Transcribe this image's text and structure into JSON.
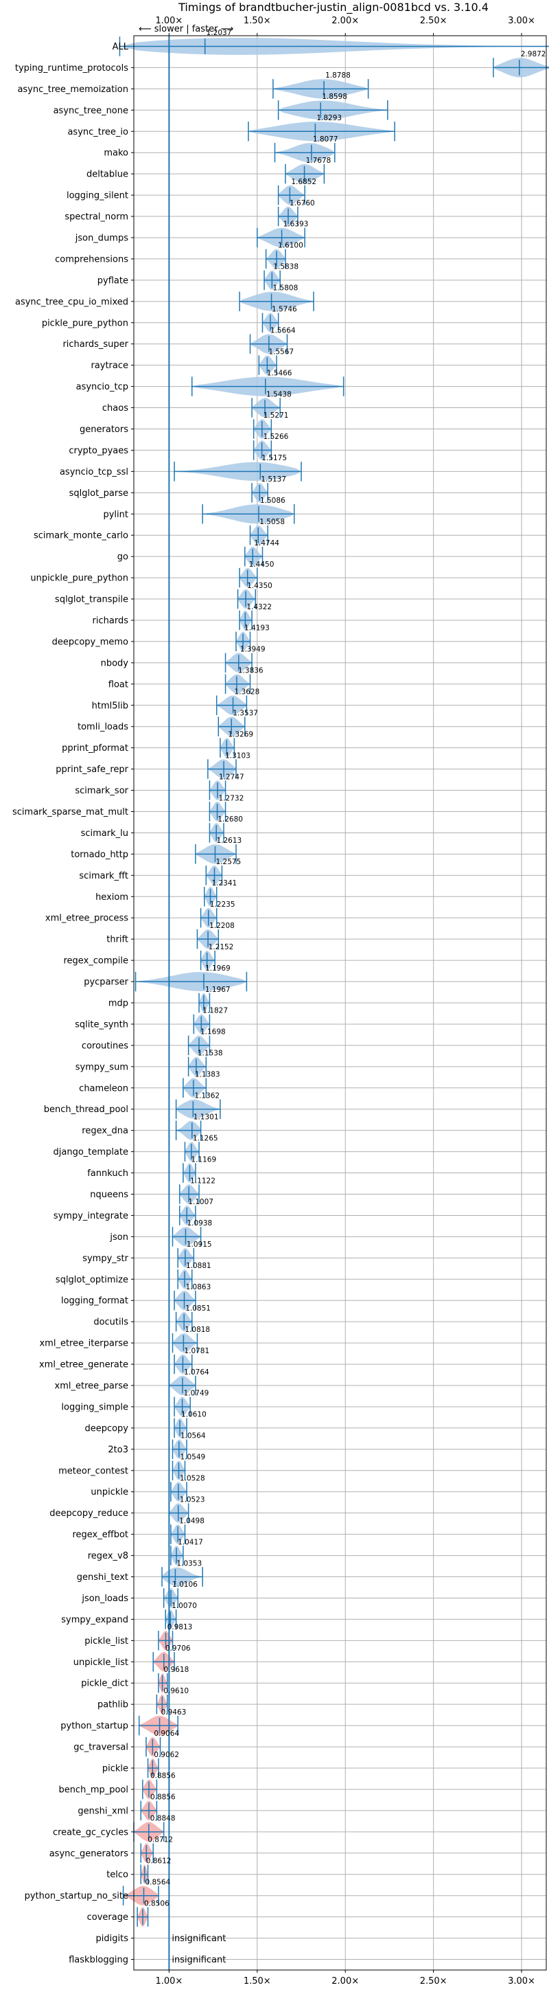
{
  "chart_data": {
    "type": "violin",
    "title": "Timings of brandtbucher-justin_align-0081bcd vs. 3.10.4",
    "direction_label": "⟵ slower | faster ⟶",
    "xlim": [
      0.8,
      3.14
    ],
    "x_ticks": [
      1.0,
      1.5,
      2.0,
      2.5,
      3.0
    ],
    "x_tick_labels": [
      "1.00×",
      "1.50×",
      "2.00×",
      "2.50×",
      "3.00×"
    ],
    "reference_line": 1.0,
    "grid": true,
    "colors": {
      "faster": "#1f77b4",
      "slower": "#d62728",
      "violin_faster": "#a9c9e6",
      "violin_slower": "#f2a9a9",
      "grid": "#b0b0b0"
    },
    "benchmarks": [
      {
        "name": "ALL",
        "value": "1.2037",
        "median": 1.2037,
        "min": 0.72,
        "max": 3.17
      },
      {
        "name": "typing_runtime_protocols",
        "value": "2.9872",
        "median": 2.9872,
        "min": 2.84,
        "max": 3.17
      },
      {
        "name": "async_tree_memoization",
        "value": "1.8788",
        "median": 1.8788,
        "min": 1.59,
        "max": 2.13
      },
      {
        "name": "async_tree_none",
        "value": "1.8598",
        "median": 1.8598,
        "min": 1.62,
        "max": 2.24
      },
      {
        "name": "async_tree_io",
        "value": "1.8293",
        "median": 1.8293,
        "min": 1.45,
        "max": 2.28
      },
      {
        "name": "mako",
        "value": "1.8077",
        "median": 1.8077,
        "min": 1.6,
        "max": 1.94
      },
      {
        "name": "deltablue",
        "value": "1.7678",
        "median": 1.7678,
        "min": 1.66,
        "max": 1.88
      },
      {
        "name": "logging_silent",
        "value": "1.6852",
        "median": 1.6852,
        "min": 1.62,
        "max": 1.77
      },
      {
        "name": "spectral_norm",
        "value": "1.6760",
        "median": 1.676,
        "min": 1.62,
        "max": 1.73
      },
      {
        "name": "json_dumps",
        "value": "1.6393",
        "median": 1.6393,
        "min": 1.5,
        "max": 1.77
      },
      {
        "name": "comprehensions",
        "value": "1.6100",
        "median": 1.61,
        "min": 1.55,
        "max": 1.66
      },
      {
        "name": "pyflate",
        "value": "1.5838",
        "median": 1.5838,
        "min": 1.54,
        "max": 1.63
      },
      {
        "name": "async_tree_cpu_io_mixed",
        "value": "1.5808",
        "median": 1.5808,
        "min": 1.4,
        "max": 1.82
      },
      {
        "name": "pickle_pure_python",
        "value": "1.5746",
        "median": 1.5746,
        "min": 1.53,
        "max": 1.62
      },
      {
        "name": "richards_super",
        "value": "1.5664",
        "median": 1.5664,
        "min": 1.46,
        "max": 1.67
      },
      {
        "name": "raytrace",
        "value": "1.5567",
        "median": 1.5567,
        "min": 1.51,
        "max": 1.61
      },
      {
        "name": "asyncio_tcp",
        "value": "1.5466",
        "median": 1.5466,
        "min": 1.13,
        "max": 1.99
      },
      {
        "name": "chaos",
        "value": "1.5438",
        "median": 1.5438,
        "min": 1.47,
        "max": 1.63
      },
      {
        "name": "generators",
        "value": "1.5271",
        "median": 1.5271,
        "min": 1.48,
        "max": 1.58
      },
      {
        "name": "crypto_pyaes",
        "value": "1.5266",
        "median": 1.5266,
        "min": 1.48,
        "max": 1.58
      },
      {
        "name": "asyncio_tcp_ssl",
        "value": "1.5175",
        "median": 1.5175,
        "min": 1.03,
        "max": 1.75
      },
      {
        "name": "sqlglot_parse",
        "value": "1.5137",
        "median": 1.5137,
        "min": 1.47,
        "max": 1.56
      },
      {
        "name": "pylint",
        "value": "1.5086",
        "median": 1.5086,
        "min": 1.19,
        "max": 1.71
      },
      {
        "name": "scimark_monte_carlo",
        "value": "1.5058",
        "median": 1.5058,
        "min": 1.46,
        "max": 1.56
      },
      {
        "name": "go",
        "value": "1.4744",
        "median": 1.4744,
        "min": 1.43,
        "max": 1.53
      },
      {
        "name": "unpickle_pure_python",
        "value": "1.4450",
        "median": 1.445,
        "min": 1.4,
        "max": 1.5
      },
      {
        "name": "sqlglot_transpile",
        "value": "1.4350",
        "median": 1.435,
        "min": 1.39,
        "max": 1.49
      },
      {
        "name": "richards",
        "value": "1.4322",
        "median": 1.4322,
        "min": 1.4,
        "max": 1.47
      },
      {
        "name": "deepcopy_memo",
        "value": "1.4193",
        "median": 1.4193,
        "min": 1.38,
        "max": 1.46
      },
      {
        "name": "nbody",
        "value": "1.3949",
        "median": 1.3949,
        "min": 1.32,
        "max": 1.47
      },
      {
        "name": "float",
        "value": "1.3836",
        "median": 1.3836,
        "min": 1.32,
        "max": 1.46
      },
      {
        "name": "html5lib",
        "value": "1.3628",
        "median": 1.3628,
        "min": 1.27,
        "max": 1.44
      },
      {
        "name": "tomli_loads",
        "value": "1.3537",
        "median": 1.3537,
        "min": 1.28,
        "max": 1.43
      },
      {
        "name": "pprint_pformat",
        "value": "1.3269",
        "median": 1.3269,
        "min": 1.29,
        "max": 1.37
      },
      {
        "name": "pprint_safe_repr",
        "value": "1.3103",
        "median": 1.3103,
        "min": 1.22,
        "max": 1.38
      },
      {
        "name": "scimark_sor",
        "value": "1.2747",
        "median": 1.2747,
        "min": 1.23,
        "max": 1.32
      },
      {
        "name": "scimark_sparse_mat_mult",
        "value": "1.2732",
        "median": 1.2732,
        "min": 1.23,
        "max": 1.32
      },
      {
        "name": "scimark_lu",
        "value": "1.2680",
        "median": 1.268,
        "min": 1.23,
        "max": 1.31
      },
      {
        "name": "tornado_http",
        "value": "1.2613",
        "median": 1.2613,
        "min": 1.15,
        "max": 1.38
      },
      {
        "name": "scimark_fft",
        "value": "1.2575",
        "median": 1.2575,
        "min": 1.21,
        "max": 1.3
      },
      {
        "name": "hexiom",
        "value": "1.2341",
        "median": 1.2341,
        "min": 1.2,
        "max": 1.27
      },
      {
        "name": "xml_etree_process",
        "value": "1.2235",
        "median": 1.2235,
        "min": 1.18,
        "max": 1.27
      },
      {
        "name": "thrift",
        "value": "1.2208",
        "median": 1.2208,
        "min": 1.16,
        "max": 1.28
      },
      {
        "name": "regex_compile",
        "value": "1.2152",
        "median": 1.2152,
        "min": 1.18,
        "max": 1.26
      },
      {
        "name": "pycparser",
        "value": "1.1969",
        "median": 1.1969,
        "min": 0.81,
        "max": 1.44
      },
      {
        "name": "mdp",
        "value": "1.1967",
        "median": 1.1967,
        "min": 1.17,
        "max": 1.23
      },
      {
        "name": "sqlite_synth",
        "value": "1.1827",
        "median": 1.1827,
        "min": 1.14,
        "max": 1.23
      },
      {
        "name": "coroutines",
        "value": "1.1698",
        "median": 1.1698,
        "min": 1.11,
        "max": 1.23
      },
      {
        "name": "sympy_sum",
        "value": "1.1538",
        "median": 1.1538,
        "min": 1.11,
        "max": 1.21
      },
      {
        "name": "chameleon",
        "value": "1.1383",
        "median": 1.1383,
        "min": 1.08,
        "max": 1.21
      },
      {
        "name": "bench_thread_pool",
        "value": "1.1362",
        "median": 1.1362,
        "min": 1.04,
        "max": 1.29
      },
      {
        "name": "regex_dna",
        "value": "1.1301",
        "median": 1.1301,
        "min": 1.04,
        "max": 1.18
      },
      {
        "name": "django_template",
        "value": "1.1265",
        "median": 1.1265,
        "min": 1.09,
        "max": 1.17
      },
      {
        "name": "fannkuch",
        "value": "1.1169",
        "median": 1.1169,
        "min": 1.08,
        "max": 1.15
      },
      {
        "name": "nqueens",
        "value": "1.1122",
        "median": 1.1122,
        "min": 1.06,
        "max": 1.17
      },
      {
        "name": "sympy_integrate",
        "value": "1.1007",
        "median": 1.1007,
        "min": 1.06,
        "max": 1.15
      },
      {
        "name": "json",
        "value": "1.0938",
        "median": 1.0938,
        "min": 1.02,
        "max": 1.18
      },
      {
        "name": "sympy_str",
        "value": "1.0915",
        "median": 1.0915,
        "min": 1.05,
        "max": 1.14
      },
      {
        "name": "sqlglot_optimize",
        "value": "1.0881",
        "median": 1.0881,
        "min": 1.05,
        "max": 1.13
      },
      {
        "name": "logging_format",
        "value": "1.0863",
        "median": 1.0863,
        "min": 1.03,
        "max": 1.15
      },
      {
        "name": "docutils",
        "value": "1.0851",
        "median": 1.0851,
        "min": 1.04,
        "max": 1.13
      },
      {
        "name": "xml_etree_iterparse",
        "value": "1.0818",
        "median": 1.0818,
        "min": 1.02,
        "max": 1.16
      },
      {
        "name": "xml_etree_generate",
        "value": "1.0781",
        "median": 1.0781,
        "min": 1.03,
        "max": 1.13
      },
      {
        "name": "xml_etree_parse",
        "value": "1.0764",
        "median": 1.0764,
        "min": 1.0,
        "max": 1.15
      },
      {
        "name": "logging_simple",
        "value": "1.0749",
        "median": 1.0749,
        "min": 1.03,
        "max": 1.12
      },
      {
        "name": "deepcopy",
        "value": "1.0610",
        "median": 1.061,
        "min": 1.03,
        "max": 1.1
      },
      {
        "name": "2to3",
        "value": "1.0564",
        "median": 1.0564,
        "min": 1.02,
        "max": 1.1
      },
      {
        "name": "meteor_contest",
        "value": "1.0549",
        "median": 1.0549,
        "min": 1.02,
        "max": 1.09
      },
      {
        "name": "unpickle",
        "value": "1.0528",
        "median": 1.0528,
        "min": 1.01,
        "max": 1.1
      },
      {
        "name": "deepcopy_reduce",
        "value": "1.0523",
        "median": 1.0523,
        "min": 1.0,
        "max": 1.11
      },
      {
        "name": "regex_effbot",
        "value": "1.0498",
        "median": 1.0498,
        "min": 1.01,
        "max": 1.09
      },
      {
        "name": "regex_v8",
        "value": "1.0417",
        "median": 1.0417,
        "min": 1.01,
        "max": 1.08
      },
      {
        "name": "genshi_text",
        "value": "1.0353",
        "median": 1.0353,
        "min": 0.96,
        "max": 1.19
      },
      {
        "name": "json_loads",
        "value": "1.0106",
        "median": 1.0106,
        "min": 0.97,
        "max": 1.05
      },
      {
        "name": "sympy_expand",
        "value": "1.0070",
        "median": 1.007,
        "min": 0.98,
        "max": 1.04
      },
      {
        "name": "pickle_list",
        "value": "0.9813",
        "median": 0.9813,
        "min": 0.94,
        "max": 1.02
      },
      {
        "name": "unpickle_list",
        "value": "0.9706",
        "median": 0.9706,
        "min": 0.91,
        "max": 1.03
      },
      {
        "name": "pickle_dict",
        "value": "0.9618",
        "median": 0.9618,
        "min": 0.94,
        "max": 0.99
      },
      {
        "name": "pathlib",
        "value": "0.9610",
        "median": 0.961,
        "min": 0.93,
        "max": 0.99
      },
      {
        "name": "python_startup",
        "value": "0.9463",
        "median": 0.9463,
        "min": 0.83,
        "max": 1.05
      },
      {
        "name": "gc_traversal",
        "value": "0.9064",
        "median": 0.9064,
        "min": 0.87,
        "max": 0.95
      },
      {
        "name": "pickle",
        "value": "0.9062",
        "median": 0.9062,
        "min": 0.88,
        "max": 0.94
      },
      {
        "name": "bench_mp_pool",
        "value": "0.8856",
        "median": 0.8856,
        "min": 0.85,
        "max": 0.93
      },
      {
        "name": "genshi_xml",
        "value": "0.8856",
        "median": 0.8856,
        "min": 0.84,
        "max": 0.93
      },
      {
        "name": "create_gc_cycles",
        "value": "0.8848",
        "median": 0.8848,
        "min": 0.8,
        "max": 0.97
      },
      {
        "name": "async_generators",
        "value": "0.8712",
        "median": 0.8712,
        "min": 0.84,
        "max": 0.91
      },
      {
        "name": "telco",
        "value": "0.8612",
        "median": 0.8612,
        "min": 0.84,
        "max": 0.88
      },
      {
        "name": "python_startup_no_site",
        "value": "0.8564",
        "median": 0.8564,
        "min": 0.74,
        "max": 0.94
      },
      {
        "name": "coverage",
        "value": "0.8506",
        "median": 0.8506,
        "min": 0.82,
        "max": 0.88
      },
      {
        "name": "pidigits",
        "value": "insignificant",
        "median": null,
        "min": null,
        "max": null
      },
      {
        "name": "flaskblogging",
        "value": "insignificant",
        "median": null,
        "min": null,
        "max": null
      }
    ]
  }
}
